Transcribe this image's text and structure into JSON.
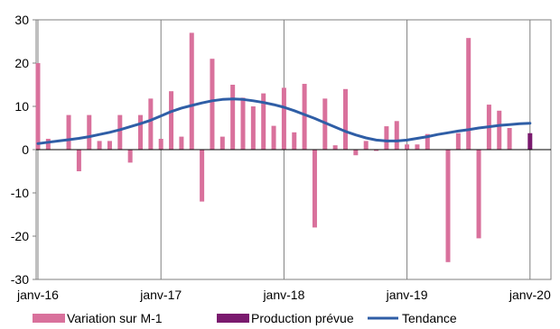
{
  "chart_data": {
    "type": "bar",
    "ylim": [
      -30,
      30
    ],
    "yticks": [
      -30,
      -20,
      -10,
      0,
      10,
      20,
      30
    ],
    "ytick_labels": [
      "-30",
      "-20",
      "-10",
      "0",
      "10",
      "20",
      "30"
    ],
    "xticks": [
      {
        "month_index": 0,
        "label": "janv-16"
      },
      {
        "month_index": 12,
        "label": "janv-17"
      },
      {
        "month_index": 24,
        "label": "janv-18"
      },
      {
        "month_index": 36,
        "label": "janv-19"
      },
      {
        "month_index": 48,
        "label": "janv-20"
      }
    ],
    "grid": {
      "vertical": true,
      "horizontal": false
    },
    "legend": {
      "position": "bottom"
    },
    "series": [
      {
        "name": "Variation sur M-1",
        "kind": "bar",
        "color": "#d9719c",
        "start": "janv-16",
        "values": [
          20,
          2.5,
          0,
          8,
          -5,
          8,
          2,
          2,
          8,
          -3,
          8,
          11.8,
          2.5,
          13.5,
          3,
          27,
          -12,
          21,
          3,
          15,
          12,
          10,
          13,
          5.5,
          14.3,
          4,
          15.2,
          -18,
          11.8,
          1,
          14,
          -1.3,
          2,
          -0.3,
          5.4,
          6.6,
          1.2,
          1.2,
          3.6,
          0,
          -26,
          3.8,
          25.8,
          -20.5,
          10.4,
          9,
          5,
          0,
          0
        ]
      },
      {
        "name": "Production prévue",
        "kind": "bar",
        "color": "#7a1a6e",
        "start": "janv-16",
        "values": [
          null,
          null,
          null,
          null,
          null,
          null,
          null,
          null,
          null,
          null,
          null,
          null,
          null,
          null,
          null,
          null,
          null,
          null,
          null,
          null,
          null,
          null,
          null,
          null,
          null,
          null,
          null,
          null,
          null,
          null,
          null,
          null,
          null,
          null,
          null,
          null,
          null,
          null,
          null,
          null,
          null,
          null,
          null,
          null,
          null,
          null,
          null,
          null,
          3.8
        ]
      },
      {
        "name": "Tendance",
        "kind": "line",
        "color": "#2f5ea6",
        "start": "janv-16",
        "values": [
          1.4,
          1.7,
          2.0,
          2.3,
          2.6,
          3.0,
          3.5,
          4.0,
          4.6,
          5.3,
          6.0,
          6.8,
          7.8,
          8.8,
          9.6,
          10.2,
          10.8,
          11.3,
          11.6,
          11.7,
          11.6,
          11.3,
          10.9,
          10.4,
          9.8,
          9.0,
          8.1,
          7.2,
          6.2,
          5.2,
          4.2,
          3.4,
          2.7,
          2.2,
          2.0,
          2.0,
          2.2,
          2.6,
          3.0,
          3.5,
          3.9,
          4.3,
          4.6,
          5.0,
          5.3,
          5.6,
          5.8,
          6.0,
          6.1
        ]
      }
    ]
  }
}
